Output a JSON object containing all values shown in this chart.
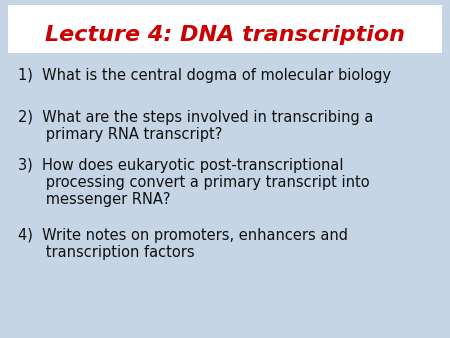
{
  "title": "Lecture 4: DNA transcription",
  "title_color": "#cc0000",
  "title_fontsize": 16,
  "background_color": "#c5d5e5",
  "title_box_color": "#ffffff",
  "body_text_color": "#111111",
  "body_fontsize": 10.5,
  "items": [
    {
      "lines": [
        "1)  What is the central dogma of molecular biology"
      ]
    },
    {
      "lines": [
        "2)  What are the steps involved in transcribing a",
        "      primary RNA transcript?"
      ]
    },
    {
      "lines": [
        "3)  How does eukaryotic post-transcriptional",
        "      processing convert a primary transcript into",
        "      messenger RNA?"
      ]
    },
    {
      "lines": [
        "4)  Write notes on promoters, enhancers and",
        "      transcription factors"
      ]
    }
  ]
}
